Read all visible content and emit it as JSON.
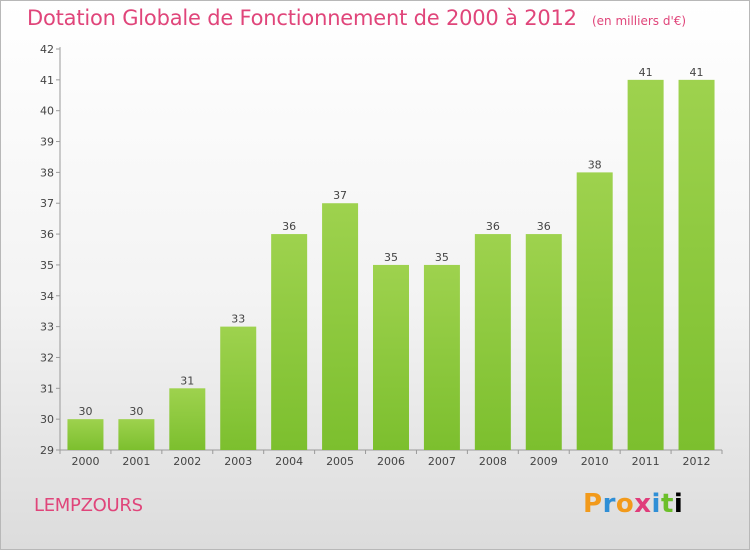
{
  "chart_data": {
    "type": "bar",
    "title": "Dotation Globale de Fonctionnement de 2000 à 2012",
    "unit_note": "(en milliers d'€)",
    "categories": [
      "2000",
      "2001",
      "2002",
      "2003",
      "2004",
      "2005",
      "2006",
      "2007",
      "2008",
      "2009",
      "2010",
      "2011",
      "2012"
    ],
    "values": [
      30,
      30,
      31,
      33,
      36,
      37,
      35,
      35,
      36,
      36,
      38,
      41,
      41
    ],
    "ylim": [
      29,
      42
    ],
    "yticks": [
      29,
      30,
      31,
      32,
      33,
      34,
      35,
      36,
      37,
      38,
      39,
      40,
      41,
      42
    ],
    "grid": false,
    "bar_color": "#7cbf2e",
    "bar_color_light": "#9ed24e",
    "label_color": "#444444"
  },
  "place_name": "LEMPZOURS",
  "logo": [
    "P",
    "r",
    "o",
    "x",
    "i",
    "t",
    "i"
  ]
}
